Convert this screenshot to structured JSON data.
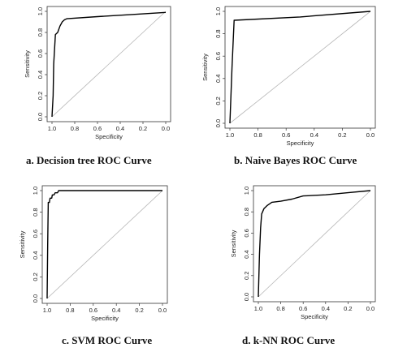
{
  "chart_data": [
    {
      "type": "line",
      "caption": "a. Decision tree ROC Curve",
      "xlabel": "Specificity",
      "ylabel": "Sensitivity",
      "xlim": [
        1.0,
        0.0
      ],
      "ylim": [
        0.0,
        1.0
      ],
      "xticks": [
        "1.0",
        "0.8",
        "0.6",
        "0.4",
        "0.2",
        "0.0"
      ],
      "yticks": [
        "0.0",
        "0.2",
        "0.4",
        "0.6",
        "0.8",
        "1.0"
      ],
      "diagonal": true,
      "series": [
        {
          "x": [
            1.0,
            0.99,
            0.985,
            0.97,
            0.95,
            0.93,
            0.91,
            0.89,
            0.87,
            0.6,
            0.3,
            0.0
          ],
          "y": [
            0.0,
            0.2,
            0.5,
            0.78,
            0.8,
            0.86,
            0.9,
            0.92,
            0.93,
            0.95,
            0.97,
            0.99
          ]
        }
      ]
    },
    {
      "type": "line",
      "caption": "b. Naive Bayes ROC Curve",
      "xlabel": "Specificity",
      "ylabel": "Sensitivity",
      "xlim": [
        1.0,
        0.0
      ],
      "ylim": [
        0.0,
        1.0
      ],
      "xticks": [
        "1.0",
        "0.8",
        "0.6",
        "0.4",
        "0.2",
        "0.0"
      ],
      "yticks": [
        "0.0",
        "0.2",
        "0.4",
        "0.6",
        "0.8",
        "1.0"
      ],
      "diagonal": true,
      "series": [
        {
          "x": [
            1.0,
            0.985,
            0.97,
            0.5,
            0.0
          ],
          "y": [
            0.0,
            0.5,
            0.92,
            0.95,
            1.0
          ]
        }
      ]
    },
    {
      "type": "line",
      "caption": "c. SVM ROC Curve",
      "xlabel": "Specificity",
      "ylabel": "Sensitivity",
      "xlim": [
        1.0,
        0.0
      ],
      "ylim": [
        0.0,
        1.0
      ],
      "xticks": [
        "1.0",
        "0.8",
        "0.6",
        "0.4",
        "0.2",
        "0.0"
      ],
      "yticks": [
        "0.0",
        "0.2",
        "0.4",
        "0.6",
        "0.8",
        "1.0"
      ],
      "diagonal": true,
      "series": [
        {
          "x": [
            1.0,
            0.995,
            0.99,
            0.98,
            0.975,
            0.96,
            0.955,
            0.94,
            0.93,
            0.91,
            0.9,
            0.0
          ],
          "y": [
            0.0,
            0.5,
            0.89,
            0.89,
            0.93,
            0.93,
            0.96,
            0.96,
            0.98,
            0.98,
            1.0,
            1.0
          ]
        }
      ]
    },
    {
      "type": "line",
      "caption": "d. k-NN ROC Curve",
      "xlabel": "Specificity",
      "ylabel": "Sensitivity",
      "xlim": [
        1.0,
        0.0
      ],
      "ylim": [
        0.0,
        1.0
      ],
      "xticks": [
        "1.0",
        "0.8",
        "0.6",
        "0.4",
        "0.2",
        "0.0"
      ],
      "yticks": [
        "0.0",
        "0.2",
        "0.4",
        "0.6",
        "0.8",
        "1.0"
      ],
      "diagonal": true,
      "series": [
        {
          "x": [
            1.0,
            0.99,
            0.98,
            0.97,
            0.95,
            0.92,
            0.88,
            0.8,
            0.7,
            0.6,
            0.4,
            0.2,
            0.0
          ],
          "y": [
            0.0,
            0.4,
            0.65,
            0.78,
            0.83,
            0.86,
            0.89,
            0.9,
            0.92,
            0.95,
            0.96,
            0.98,
            1.0
          ]
        }
      ]
    }
  ],
  "colors": {
    "curve": "#000000",
    "diagonal": "#b5b5b5",
    "frame": "#333333",
    "caption": "#111111"
  }
}
